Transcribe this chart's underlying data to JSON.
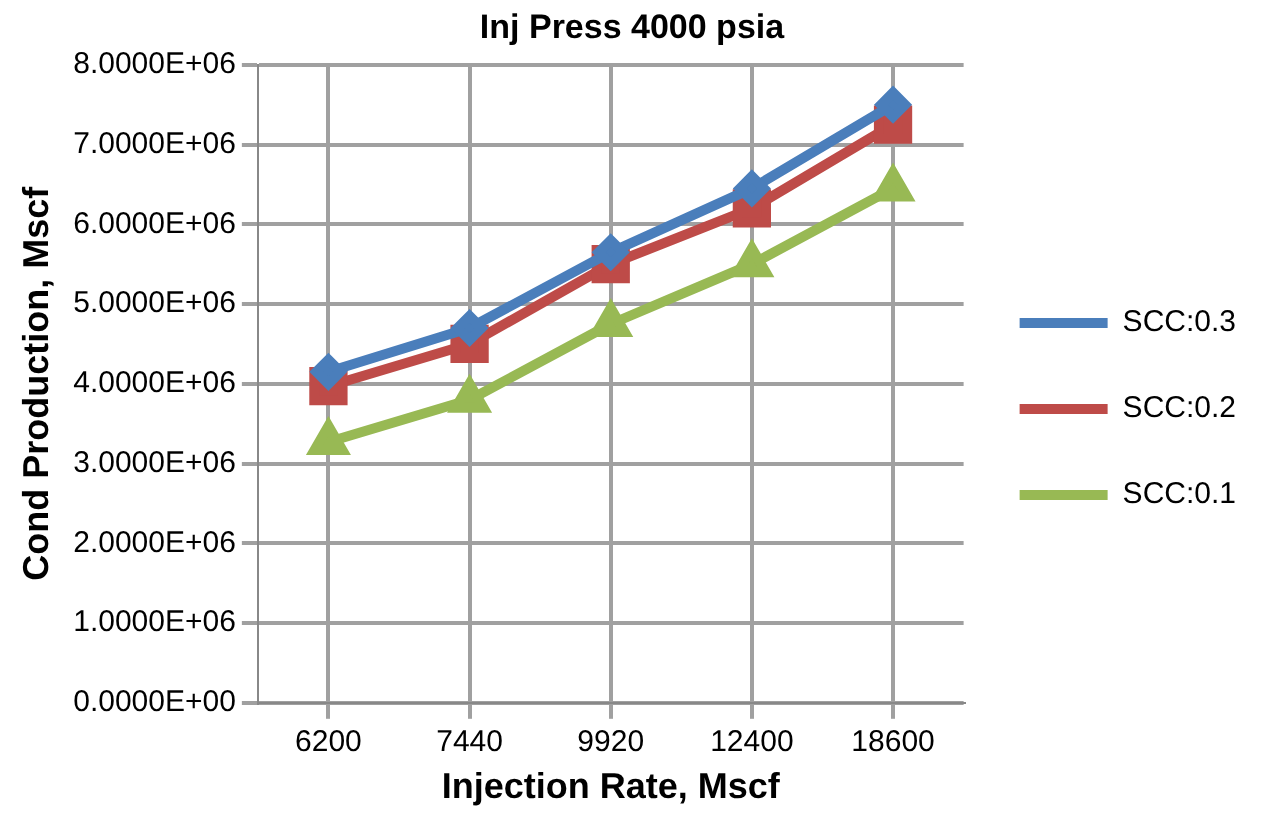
{
  "chart_data": {
    "type": "line",
    "title": "Inj Press 4000 psia",
    "xlabel": "Injection Rate, Mscf",
    "ylabel": "Cond Production, Mscf",
    "categories": [
      "6200",
      "7440",
      "9920",
      "12400",
      "18600"
    ],
    "series": [
      {
        "name": "SCC:0.3",
        "color": "#4a7ebb",
        "marker": "diamond",
        "values": [
          4150000,
          4700000,
          5650000,
          6450000,
          7500000
        ]
      },
      {
        "name": "SCC:0.2",
        "color": "#be4b48",
        "marker": "square",
        "values": [
          3970000,
          4500000,
          5500000,
          6200000,
          7250000
        ]
      },
      {
        "name": "SCC:0.1",
        "color": "#98b954",
        "marker": "triangle",
        "values": [
          3270000,
          3800000,
          4750000,
          5500000,
          6450000
        ]
      }
    ],
    "ylim": [
      0,
      8000000
    ],
    "yticks": [
      {
        "value": 0,
        "label": "0.0000E+00"
      },
      {
        "value": 1000000,
        "label": "1.0000E+06"
      },
      {
        "value": 2000000,
        "label": "2.0000E+06"
      },
      {
        "value": 3000000,
        "label": "3.0000E+06"
      },
      {
        "value": 4000000,
        "label": "4.0000E+06"
      },
      {
        "value": 5000000,
        "label": "5.0000E+06"
      },
      {
        "value": 6000000,
        "label": "6.0000E+06"
      },
      {
        "value": 7000000,
        "label": "7.0000E+06"
      },
      {
        "value": 8000000,
        "label": "8.0000E+06"
      }
    ],
    "grid": true,
    "legend": "right",
    "line_style": "solid"
  }
}
